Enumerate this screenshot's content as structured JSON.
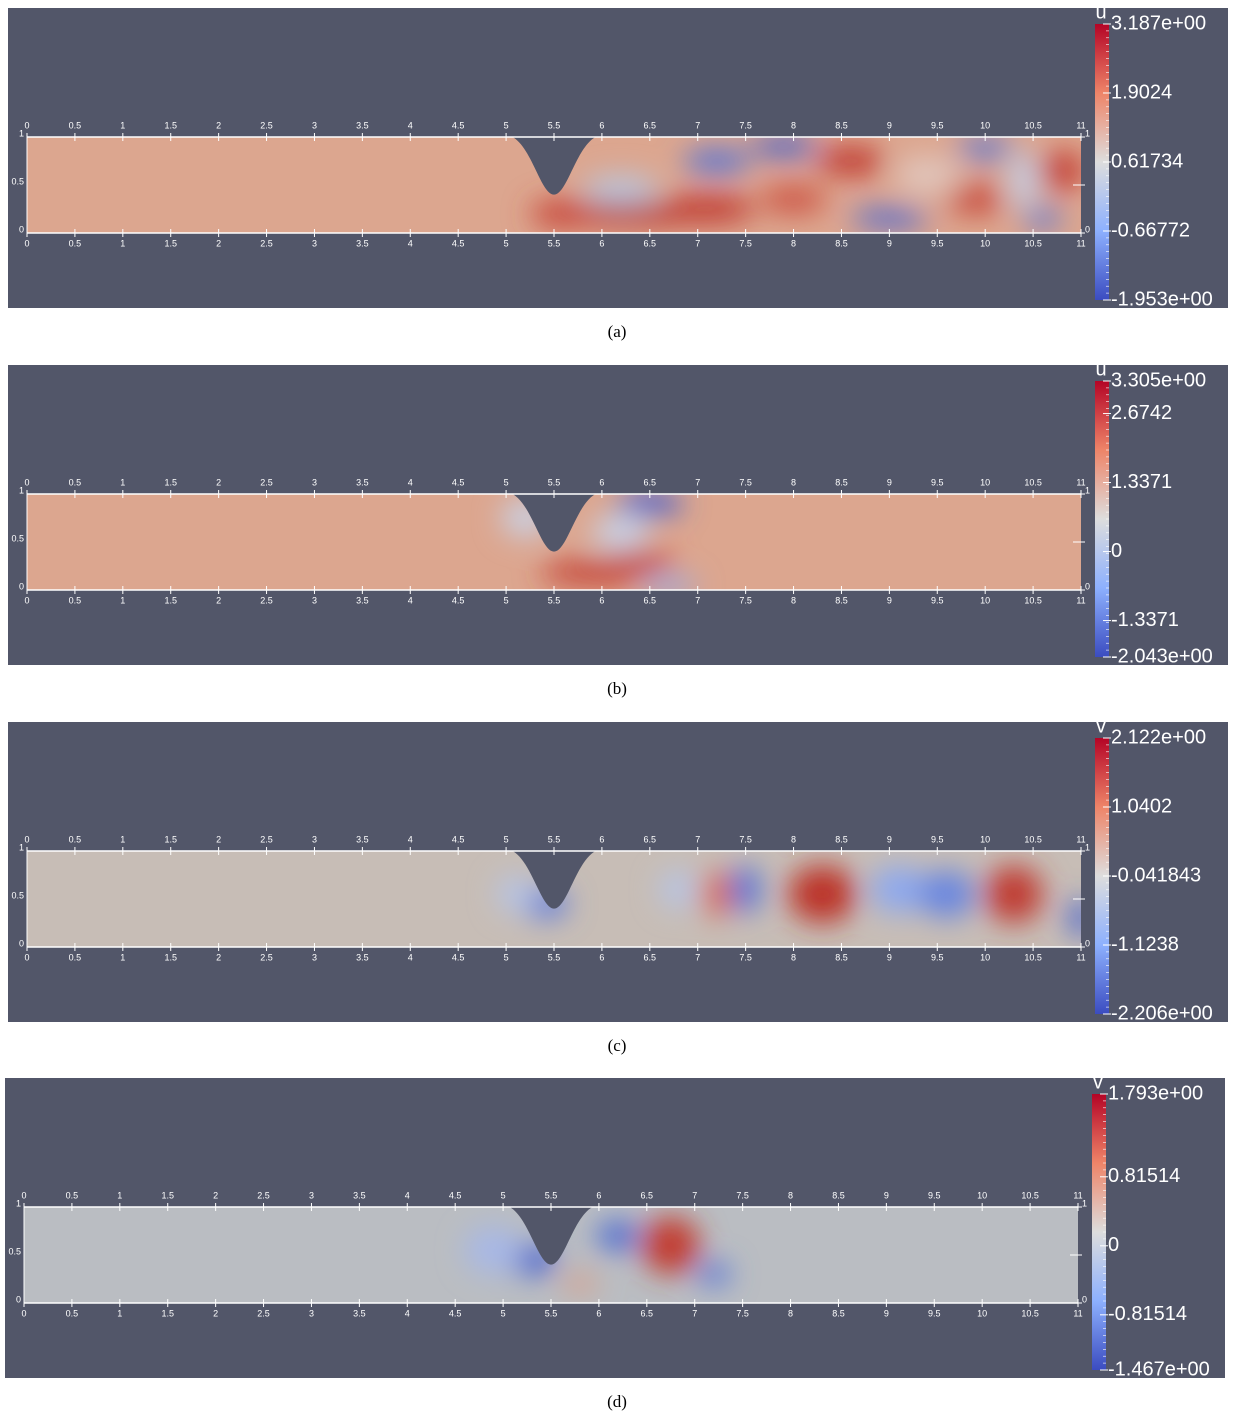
{
  "panels": [
    {
      "variable": "u",
      "colorbar_labels": [
        "3.187e+00",
        "1.9024",
        "0.61734",
        "-0.66772",
        "-1.953e+00"
      ],
      "caption": "(a)"
    },
    {
      "variable": "u",
      "colorbar_labels": [
        "3.305e+00",
        "2.6742",
        "1.3371",
        "0",
        "-1.3371",
        "-2.043e+00"
      ],
      "caption": "(b)"
    },
    {
      "variable": "v",
      "colorbar_labels": [
        "2.122e+00",
        "1.0402",
        "-0.041843",
        "-1.1238",
        "-2.206e+00"
      ],
      "caption": "(c)"
    },
    {
      "variable": "v",
      "colorbar_labels": [
        "1.793e+00",
        "0.81514",
        "0",
        "-0.81514",
        "-1.467e+00"
      ],
      "caption": "(d)"
    }
  ],
  "x_ticks": [
    "0",
    "0.5",
    "1",
    "1.5",
    "2",
    "2.5",
    "3",
    "3.5",
    "4",
    "4.5",
    "5",
    "5.5",
    "6",
    "6.5",
    "7",
    "7.5",
    "8",
    "8.5",
    "9",
    "9.5",
    "10",
    "10.5",
    "11"
  ],
  "y_ticks": [
    "0",
    "0.5",
    "1"
  ]
}
